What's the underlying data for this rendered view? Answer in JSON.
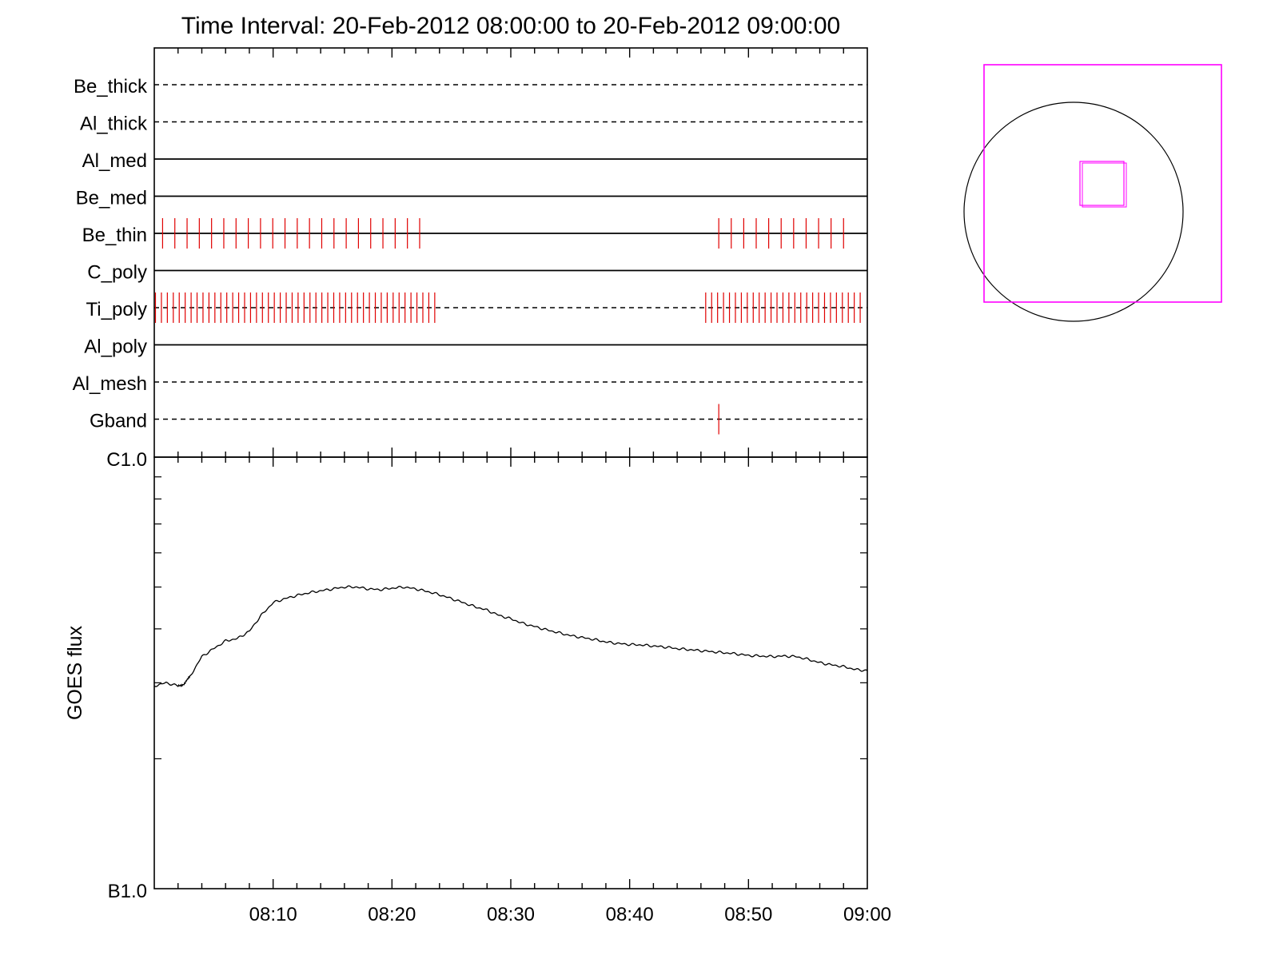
{
  "chart_data": [
    {
      "type": "timeline",
      "title": "Time Interval: 20-Feb-2012 08:00:00 to 20-Feb-2012 09:00:00",
      "x_range_minutes": [
        0,
        60
      ],
      "rows": [
        {
          "label": "Be_thick",
          "line": "dashed",
          "marks": []
        },
        {
          "label": "Al_thick",
          "line": "dashed",
          "marks": []
        },
        {
          "label": "Al_med",
          "line": "solid",
          "marks": []
        },
        {
          "label": "Be_med",
          "line": "solid",
          "marks": []
        },
        {
          "label": "Be_thin",
          "line": "solid",
          "marks": [
            {
              "from": 0.7,
              "to": 23.0,
              "step": 1.03
            },
            {
              "from": 47.5,
              "to": 59.0,
              "step": 1.05
            }
          ]
        },
        {
          "label": "C_poly",
          "line": "solid",
          "marks": []
        },
        {
          "label": "Ti_poly",
          "line": "dashed",
          "marks": [
            {
              "from": 0.1,
              "to": 23.7,
              "step": 0.5
            },
            {
              "from": 46.4,
              "to": 59.8,
              "step": 0.5
            }
          ]
        },
        {
          "label": "Al_poly",
          "line": "solid",
          "marks": []
        },
        {
          "label": "Al_mesh",
          "line": "dashed",
          "marks": []
        },
        {
          "label": "Gband",
          "line": "dashed",
          "marks": [
            {
              "from": 47.5,
              "to": 47.5,
              "step": 1
            }
          ]
        }
      ],
      "mark_color": "#e00000"
    },
    {
      "type": "line",
      "ylabel": "GOES flux",
      "y_scale": "log",
      "y_tick_labels": [
        "C1.0",
        "B1.0"
      ],
      "ylim": [
        1e-07,
        1e-06
      ],
      "x_tick_labels": [
        "08:10",
        "08:20",
        "08:30",
        "08:40",
        "08:50",
        "09:00"
      ],
      "x_ticks_minutes": [
        10,
        20,
        30,
        40,
        50,
        60
      ],
      "xlim_minutes": [
        0,
        60
      ],
      "series": [
        {
          "x": [
            0,
            1,
            2,
            2.5,
            3,
            4,
            5,
            6,
            7,
            8,
            9,
            10,
            11,
            12,
            13,
            14,
            15,
            16,
            17,
            18,
            19,
            20,
            21,
            22,
            23,
            24,
            25,
            26,
            27,
            28,
            29,
            30,
            31,
            32,
            33,
            34,
            35,
            36,
            37,
            38,
            39,
            40,
            41,
            42,
            43,
            44,
            45,
            46,
            47,
            48,
            49,
            50,
            51,
            52,
            53,
            54,
            55,
            56,
            57,
            58,
            59,
            60
          ],
          "y": [
            2.95e-07,
            3e-07,
            2.95e-07,
            2.98e-07,
            3.1e-07,
            3.45e-07,
            3.6e-07,
            3.75e-07,
            3.8e-07,
            3.95e-07,
            4.3e-07,
            4.6e-07,
            4.7e-07,
            4.78e-07,
            4.85e-07,
            4.9e-07,
            4.95e-07,
            5e-07,
            5e-07,
            4.95e-07,
            4.93e-07,
            4.97e-07,
            5e-07,
            4.95e-07,
            4.88e-07,
            4.8e-07,
            4.7e-07,
            4.6e-07,
            4.5e-07,
            4.42e-07,
            4.3e-07,
            4.22e-07,
            4.12e-07,
            4.05e-07,
            3.98e-07,
            3.92e-07,
            3.86e-07,
            3.82e-07,
            3.78e-07,
            3.73e-07,
            3.7e-07,
            3.68e-07,
            3.67e-07,
            3.65e-07,
            3.63e-07,
            3.6e-07,
            3.58e-07,
            3.56e-07,
            3.54e-07,
            3.52e-07,
            3.5e-07,
            3.47e-07,
            3.46e-07,
            3.45e-07,
            3.46e-07,
            3.45e-07,
            3.4e-07,
            3.34e-07,
            3.3e-07,
            3.27e-07,
            3.22e-07,
            3.2e-07
          ]
        }
      ]
    },
    {
      "type": "diagram",
      "shapes": [
        {
          "kind": "circle",
          "color": "#000000"
        },
        {
          "kind": "square",
          "color": "#ff00ff"
        },
        {
          "kind": "square",
          "color": "#ff00ff"
        },
        {
          "kind": "square",
          "color": "#ff00ff"
        }
      ]
    }
  ]
}
